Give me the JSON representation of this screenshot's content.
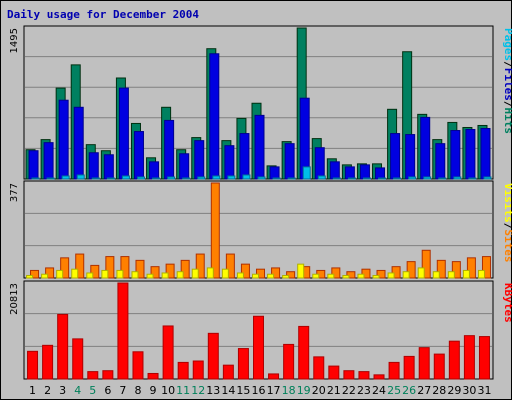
{
  "chart_data": [
    {
      "type": "bar",
      "title": "Daily usage for December 2004",
      "panel": "hits-files-pages",
      "max_label": "1495",
      "ylim": [
        0,
        1495
      ],
      "legend": [
        {
          "label": "Pages",
          "color": "#00c0e8"
        },
        {
          "label": "Files",
          "color": "#0000c0"
        },
        {
          "label": "Hits",
          "color": "#008060"
        }
      ],
      "separator": "/",
      "categories": [
        "1",
        "2",
        "3",
        "4",
        "5",
        "6",
        "7",
        "8",
        "9",
        "10",
        "11",
        "12",
        "13",
        "14",
        "15",
        "16",
        "17",
        "18",
        "19",
        "20",
        "21",
        "22",
        "23",
        "24",
        "25",
        "26",
        "27",
        "28",
        "29",
        "30",
        "31"
      ],
      "weekend_days": [
        "4",
        "5",
        "11",
        "12",
        "18",
        "19",
        "25",
        "26"
      ],
      "series": [
        {
          "name": "Hits",
          "color": "#008060",
          "values": [
            290,
            390,
            900,
            1130,
            340,
            280,
            1000,
            550,
            210,
            710,
            290,
            410,
            1290,
            380,
            600,
            750,
            130,
            370,
            1495,
            400,
            200,
            140,
            150,
            150,
            690,
            1260,
            640,
            390,
            560,
            510,
            530
          ]
        },
        {
          "name": "Files",
          "color": "#0000e0",
          "values": [
            280,
            360,
            780,
            710,
            260,
            240,
            900,
            470,
            170,
            580,
            250,
            380,
            1240,
            330,
            450,
            630,
            120,
            350,
            800,
            310,
            170,
            120,
            140,
            110,
            450,
            440,
            610,
            350,
            480,
            490,
            500
          ]
        },
        {
          "name": "Pages",
          "color": "#00c0e8",
          "values": [
            10,
            10,
            30,
            40,
            10,
            10,
            30,
            20,
            5,
            20,
            10,
            20,
            30,
            30,
            40,
            20,
            5,
            10,
            120,
            30,
            5,
            5,
            5,
            5,
            10,
            20,
            20,
            10,
            20,
            10,
            20
          ]
        }
      ]
    },
    {
      "type": "bar",
      "panel": "visits-sites",
      "max_label": "377",
      "ylim": [
        0,
        377
      ],
      "legend": [
        {
          "label": "Visits",
          "color": "#ffff00"
        },
        {
          "label": "Sites",
          "color": "#ff8000"
        }
      ],
      "separator": "/",
      "categories": [
        "1",
        "2",
        "3",
        "4",
        "5",
        "6",
        "7",
        "8",
        "9",
        "10",
        "11",
        "12",
        "13",
        "14",
        "15",
        "16",
        "17",
        "18",
        "19",
        "20",
        "21",
        "22",
        "23",
        "24",
        "25",
        "26",
        "27",
        "28",
        "29",
        "30",
        "31"
      ],
      "series": [
        {
          "name": "Sites",
          "color": "#ff8000",
          "values": [
            30,
            40,
            80,
            95,
            50,
            85,
            85,
            70,
            45,
            55,
            70,
            95,
            377,
            95,
            55,
            35,
            40,
            25,
            45,
            30,
            40,
            25,
            35,
            30,
            45,
            65,
            110,
            70,
            65,
            80,
            85
          ]
        },
        {
          "name": "Visits",
          "color": "#ffff00",
          "values": [
            10,
            15,
            30,
            35,
            20,
            30,
            30,
            25,
            15,
            20,
            25,
            35,
            40,
            35,
            20,
            15,
            15,
            10,
            55,
            15,
            15,
            10,
            15,
            10,
            20,
            25,
            40,
            25,
            25,
            30,
            30
          ]
        }
      ]
    },
    {
      "type": "bar",
      "panel": "kbytes",
      "max_label": "20813",
      "ylim": [
        0,
        20813
      ],
      "legend": [
        {
          "label": "KBytes",
          "color": "#ff0000"
        }
      ],
      "categories": [
        "1",
        "2",
        "3",
        "4",
        "5",
        "6",
        "7",
        "8",
        "9",
        "10",
        "11",
        "12",
        "13",
        "14",
        "15",
        "16",
        "17",
        "18",
        "19",
        "20",
        "21",
        "22",
        "23",
        "24",
        "25",
        "26",
        "27",
        "28",
        "29",
        "30",
        "31"
      ],
      "series": [
        {
          "name": "KBytes",
          "color": "#ff0000",
          "values": [
            6000,
            7300,
            14000,
            8700,
            1600,
            1800,
            20813,
            5900,
            1200,
            11500,
            3600,
            3900,
            9900,
            3000,
            6600,
            13600,
            1100,
            7500,
            11400,
            4800,
            2800,
            1800,
            1600,
            900,
            3600,
            4900,
            6800,
            5400,
            8200,
            9400,
            9200
          ]
        }
      ]
    }
  ]
}
